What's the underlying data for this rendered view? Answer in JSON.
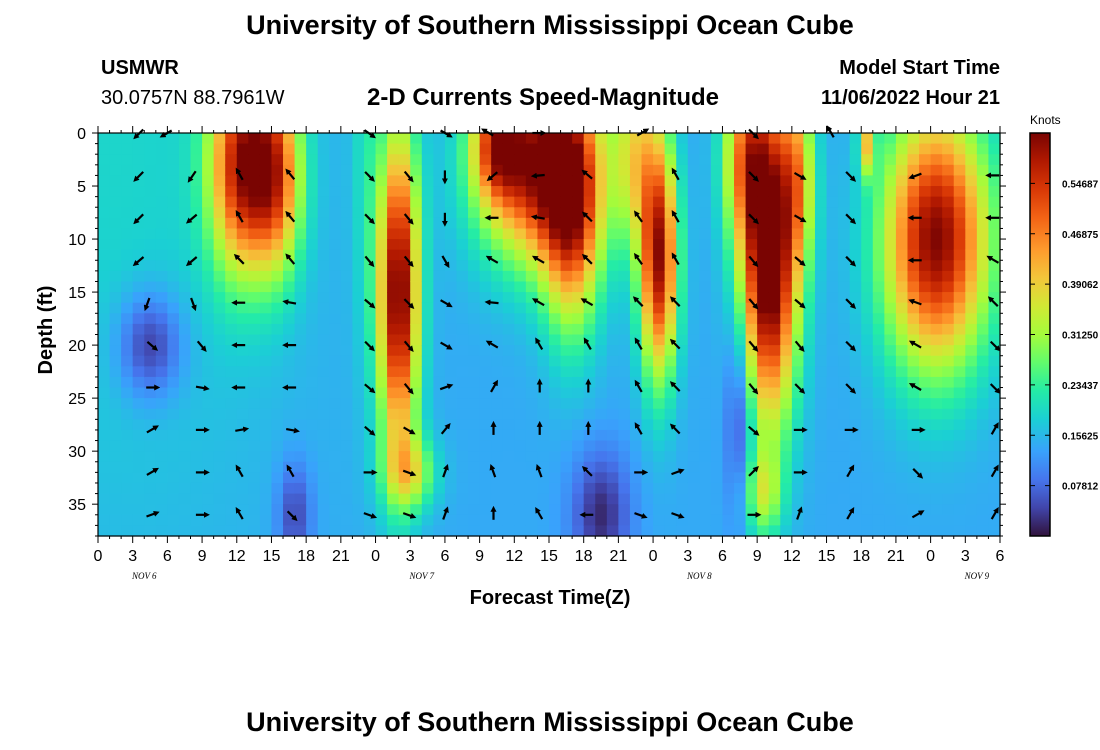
{
  "header": {
    "title": "University of Southern Mississippi Ocean Cube",
    "station": "USMWR",
    "coordinates": "30.0757N  88.7961W",
    "subtitle": "2-D Currents Speed-Magnitude",
    "model_start_label": "Model Start Time",
    "model_start_value": "11/06/2022 Hour 21"
  },
  "footer": {
    "title": "University of Southern Mississippi Ocean Cube"
  },
  "chart_data": {
    "type": "heatmap",
    "title": "2-D Currents Speed-Magnitude",
    "xlabel": "Forecast Time(Z)",
    "ylabel": "Depth (ft)",
    "x_tick_labels": [
      "0",
      "3",
      "6",
      "9",
      "12",
      "15",
      "18",
      "21",
      "0",
      "3",
      "6",
      "9",
      "12",
      "15",
      "18",
      "21",
      "0",
      "3",
      "6",
      "9",
      "12",
      "15",
      "18",
      "21",
      "0",
      "3",
      "6"
    ],
    "day_labels": [
      {
        "label": "NOV 6",
        "hour": 4
      },
      {
        "label": "NOV 7",
        "hour": 28
      },
      {
        "label": "NOV 8",
        "hour": 52
      },
      {
        "label": "NOV 9",
        "hour": 76
      }
    ],
    "x_range_hours": [
      0,
      78
    ],
    "y_ticks": [
      0,
      5,
      10,
      15,
      20,
      25,
      30,
      35
    ],
    "y_range": [
      0,
      38
    ],
    "colorbar": {
      "label": "Knots",
      "ticks": [
        "0.54687",
        "0.46875",
        "0.39062",
        "0.31250",
        "0.23437",
        "0.15625",
        "0.07812"
      ],
      "range": [
        0,
        0.625
      ]
    },
    "features": [
      {
        "hour": 1.5,
        "depth": 0,
        "wd": 40,
        "wt": 16,
        "amp": 0.05
      },
      {
        "hour": 12.5,
        "depth": 3,
        "wd": 10,
        "wt": 2.8,
        "amp": 0.42
      },
      {
        "hour": 15.5,
        "depth": 4,
        "wd": 9,
        "wt": 2.2,
        "amp": 0.3
      },
      {
        "hour": 23.2,
        "depth": 0,
        "wd": 22,
        "wt": 1.2,
        "amp": 0.06
      },
      {
        "hour": 26,
        "depth": 15,
        "wd": 15,
        "wt": 1.7,
        "amp": 0.5
      },
      {
        "hour": 27,
        "depth": 32,
        "wd": 3.5,
        "wt": 2.2,
        "amp": 0.18
      },
      {
        "hour": 38,
        "depth": 3,
        "wd": 9,
        "wt": 5,
        "amp": 0.45
      },
      {
        "hour": 34.5,
        "depth": 1,
        "wd": 5,
        "wt": 2,
        "amp": 0.25
      },
      {
        "hour": 41,
        "depth": 8,
        "wd": 11,
        "wt": 2.5,
        "amp": 0.32
      },
      {
        "hour": 48.5,
        "depth": 12,
        "wd": 11,
        "wt": 1.6,
        "amp": 0.45
      },
      {
        "hour": 46.5,
        "depth": 2,
        "wd": 9,
        "wt": 2,
        "amp": 0.2
      },
      {
        "hour": 58,
        "depth": 12,
        "wd": 15,
        "wt": 2.4,
        "amp": 0.55
      },
      {
        "hour": 56,
        "depth": 2,
        "wd": 8,
        "wt": 2,
        "amp": 0.25
      },
      {
        "hour": 60.5,
        "depth": 4,
        "wd": 9,
        "wt": 1.5,
        "amp": 0.22
      },
      {
        "hour": 57.5,
        "depth": 34,
        "wd": 4,
        "wt": 1.6,
        "amp": 0.16
      },
      {
        "hour": 72.5,
        "depth": 10,
        "wd": 12,
        "wt": 4.5,
        "amp": 0.48
      },
      {
        "hour": 66.5,
        "depth": 1,
        "wd": 3,
        "wt": 0.7,
        "amp": 0.22
      },
      {
        "hour": 4.5,
        "depth": 20,
        "wd": 5,
        "wt": 2.8,
        "amp": -0.13
      },
      {
        "hour": 17,
        "depth": 36,
        "wd": 5,
        "wt": 1.5,
        "amp": -0.1
      },
      {
        "hour": 43.5,
        "depth": 36,
        "wd": 6,
        "wt": 2.5,
        "amp": -0.12
      },
      {
        "hour": 55.5,
        "depth": 26,
        "wd": 10,
        "wt": 1.2,
        "amp": -0.12
      }
    ],
    "vectors": [
      {
        "hour": 3.6,
        "depth": 0,
        "angle": 225
      },
      {
        "hour": 6,
        "depth": 0,
        "angle": 240
      },
      {
        "hour": 23.4,
        "depth": 0,
        "angle": 125
      },
      {
        "hour": 30,
        "depth": 0,
        "angle": 120
      },
      {
        "hour": 33.8,
        "depth": 0,
        "angle": 300
      },
      {
        "hour": 38,
        "depth": 0,
        "angle": 90
      },
      {
        "hour": 47,
        "depth": 0,
        "angle": 60
      },
      {
        "hour": 56.6,
        "depth": 0,
        "angle": 135
      },
      {
        "hour": 63.4,
        "depth": 0,
        "angle": 330
      },
      {
        "hour": 3.6,
        "depth": 4,
        "angle": 225
      },
      {
        "hour": 8.2,
        "depth": 4,
        "angle": 215
      },
      {
        "hour": 12.3,
        "depth": 4,
        "angle": 330
      },
      {
        "hour": 16.7,
        "depth": 4,
        "angle": 320
      },
      {
        "hour": 23.4,
        "depth": 4,
        "angle": 135
      },
      {
        "hour": 26.8,
        "depth": 4,
        "angle": 140
      },
      {
        "hour": 30,
        "depth": 4,
        "angle": 180
      },
      {
        "hour": 34.2,
        "depth": 4,
        "angle": 230
      },
      {
        "hour": 38.2,
        "depth": 4,
        "angle": 265
      },
      {
        "hour": 42.4,
        "depth": 4,
        "angle": 310
      },
      {
        "hour": 50,
        "depth": 4,
        "angle": 330
      },
      {
        "hour": 56.6,
        "depth": 4,
        "angle": 135
      },
      {
        "hour": 60.6,
        "depth": 4,
        "angle": 120
      },
      {
        "hour": 65,
        "depth": 4,
        "angle": 135
      },
      {
        "hour": 70.8,
        "depth": 4,
        "angle": 250
      },
      {
        "hour": 77.5,
        "depth": 4,
        "angle": 270
      },
      {
        "hour": 3.6,
        "depth": 8,
        "angle": 225
      },
      {
        "hour": 8.2,
        "depth": 8,
        "angle": 230
      },
      {
        "hour": 12.3,
        "depth": 8,
        "angle": 330
      },
      {
        "hour": 16.7,
        "depth": 8,
        "angle": 320
      },
      {
        "hour": 23.4,
        "depth": 8,
        "angle": 135
      },
      {
        "hour": 26.8,
        "depth": 8,
        "angle": 140
      },
      {
        "hour": 30,
        "depth": 8,
        "angle": 180
      },
      {
        "hour": 34.2,
        "depth": 8,
        "angle": 270
      },
      {
        "hour": 38.2,
        "depth": 8,
        "angle": 280
      },
      {
        "hour": 42.4,
        "depth": 8,
        "angle": 315
      },
      {
        "hour": 46.8,
        "depth": 8,
        "angle": 325
      },
      {
        "hour": 50,
        "depth": 8,
        "angle": 330
      },
      {
        "hour": 56.6,
        "depth": 8,
        "angle": 135
      },
      {
        "hour": 60.6,
        "depth": 8,
        "angle": 120
      },
      {
        "hour": 65,
        "depth": 8,
        "angle": 135
      },
      {
        "hour": 70.8,
        "depth": 8,
        "angle": 270
      },
      {
        "hour": 77.5,
        "depth": 8,
        "angle": 270
      },
      {
        "hour": 3.6,
        "depth": 12,
        "angle": 230
      },
      {
        "hour": 8.2,
        "depth": 12,
        "angle": 230
      },
      {
        "hour": 12.3,
        "depth": 12,
        "angle": 315
      },
      {
        "hour": 16.7,
        "depth": 12,
        "angle": 320
      },
      {
        "hour": 23.4,
        "depth": 12,
        "angle": 140
      },
      {
        "hour": 26.8,
        "depth": 12,
        "angle": 140
      },
      {
        "hour": 30,
        "depth": 12,
        "angle": 150
      },
      {
        "hour": 34.2,
        "depth": 12,
        "angle": 300
      },
      {
        "hour": 38.2,
        "depth": 12,
        "angle": 300
      },
      {
        "hour": 42.4,
        "depth": 12,
        "angle": 315
      },
      {
        "hour": 46.8,
        "depth": 12,
        "angle": 325
      },
      {
        "hour": 50,
        "depth": 12,
        "angle": 330
      },
      {
        "hour": 56.6,
        "depth": 12,
        "angle": 140
      },
      {
        "hour": 60.6,
        "depth": 12,
        "angle": 130
      },
      {
        "hour": 65,
        "depth": 12,
        "angle": 135
      },
      {
        "hour": 70.8,
        "depth": 12,
        "angle": 270
      },
      {
        "hour": 77.5,
        "depth": 12,
        "angle": 300
      },
      {
        "hour": 4.3,
        "depth": 16,
        "angle": 200
      },
      {
        "hour": 8.2,
        "depth": 16,
        "angle": 160
      },
      {
        "hour": 12.3,
        "depth": 16,
        "angle": 270
      },
      {
        "hour": 16.7,
        "depth": 16,
        "angle": 280
      },
      {
        "hour": 23.4,
        "depth": 16,
        "angle": 130
      },
      {
        "hour": 26.8,
        "depth": 16,
        "angle": 135
      },
      {
        "hour": 30,
        "depth": 16,
        "angle": 120
      },
      {
        "hour": 34.2,
        "depth": 16,
        "angle": 275
      },
      {
        "hour": 38.2,
        "depth": 16,
        "angle": 300
      },
      {
        "hour": 42.4,
        "depth": 16,
        "angle": 300
      },
      {
        "hour": 46.8,
        "depth": 16,
        "angle": 315
      },
      {
        "hour": 50,
        "depth": 16,
        "angle": 315
      },
      {
        "hour": 56.6,
        "depth": 16,
        "angle": 140
      },
      {
        "hour": 60.6,
        "depth": 16,
        "angle": 130
      },
      {
        "hour": 65,
        "depth": 16,
        "angle": 135
      },
      {
        "hour": 70.8,
        "depth": 16,
        "angle": 290
      },
      {
        "hour": 77.5,
        "depth": 16,
        "angle": 315
      },
      {
        "hour": 4.6,
        "depth": 20,
        "angle": 130
      },
      {
        "hour": 8.9,
        "depth": 20,
        "angle": 140
      },
      {
        "hour": 12.3,
        "depth": 20,
        "angle": 270
      },
      {
        "hour": 16.7,
        "depth": 20,
        "angle": 270
      },
      {
        "hour": 23.4,
        "depth": 20,
        "angle": 135
      },
      {
        "hour": 26.8,
        "depth": 20,
        "angle": 140
      },
      {
        "hour": 30,
        "depth": 20,
        "angle": 120
      },
      {
        "hour": 34.2,
        "depth": 20,
        "angle": 300
      },
      {
        "hour": 38.2,
        "depth": 20,
        "angle": 330
      },
      {
        "hour": 42.4,
        "depth": 20,
        "angle": 330
      },
      {
        "hour": 46.8,
        "depth": 20,
        "angle": 330
      },
      {
        "hour": 50,
        "depth": 20,
        "angle": 315
      },
      {
        "hour": 56.6,
        "depth": 20,
        "angle": 140
      },
      {
        "hour": 60.6,
        "depth": 20,
        "angle": 140
      },
      {
        "hour": 65,
        "depth": 20,
        "angle": 135
      },
      {
        "hour": 70.8,
        "depth": 20,
        "angle": 300
      },
      {
        "hour": 77.5,
        "depth": 20,
        "angle": 135
      },
      {
        "hour": 4.6,
        "depth": 24,
        "angle": 90
      },
      {
        "hour": 8.9,
        "depth": 24,
        "angle": 100
      },
      {
        "hour": 12.3,
        "depth": 24,
        "angle": 270
      },
      {
        "hour": 16.7,
        "depth": 24,
        "angle": 270
      },
      {
        "hour": 23.4,
        "depth": 24,
        "angle": 130
      },
      {
        "hour": 26.8,
        "depth": 24,
        "angle": 140
      },
      {
        "hour": 30,
        "depth": 24,
        "angle": 70
      },
      {
        "hour": 34.2,
        "depth": 24,
        "angle": 30
      },
      {
        "hour": 38.2,
        "depth": 24,
        "angle": 0
      },
      {
        "hour": 42.4,
        "depth": 24,
        "angle": 0
      },
      {
        "hour": 46.8,
        "depth": 24,
        "angle": 330
      },
      {
        "hour": 50,
        "depth": 24,
        "angle": 315
      },
      {
        "hour": 56.6,
        "depth": 24,
        "angle": 140
      },
      {
        "hour": 60.6,
        "depth": 24,
        "angle": 135
      },
      {
        "hour": 65,
        "depth": 24,
        "angle": 135
      },
      {
        "hour": 70.8,
        "depth": 24,
        "angle": 300
      },
      {
        "hour": 77.5,
        "depth": 24,
        "angle": 135
      },
      {
        "hour": 4.6,
        "depth": 28,
        "angle": 60
      },
      {
        "hour": 8.9,
        "depth": 28,
        "angle": 90
      },
      {
        "hour": 12.3,
        "depth": 28,
        "angle": 80
      },
      {
        "hour": 16.7,
        "depth": 28,
        "angle": 100
      },
      {
        "hour": 23.4,
        "depth": 28,
        "angle": 130
      },
      {
        "hour": 26.8,
        "depth": 28,
        "angle": 120
      },
      {
        "hour": 30,
        "depth": 28,
        "angle": 40
      },
      {
        "hour": 34.2,
        "depth": 28,
        "angle": 0
      },
      {
        "hour": 38.2,
        "depth": 28,
        "angle": 0
      },
      {
        "hour": 42.4,
        "depth": 28,
        "angle": 0
      },
      {
        "hour": 46.8,
        "depth": 28,
        "angle": 330
      },
      {
        "hour": 50,
        "depth": 28,
        "angle": 315
      },
      {
        "hour": 56.6,
        "depth": 28,
        "angle": 130
      },
      {
        "hour": 60.6,
        "depth": 28,
        "angle": 90
      },
      {
        "hour": 65,
        "depth": 28,
        "angle": 90
      },
      {
        "hour": 70.8,
        "depth": 28,
        "angle": 90
      },
      {
        "hour": 77.5,
        "depth": 28,
        "angle": 30
      },
      {
        "hour": 4.6,
        "depth": 32,
        "angle": 60
      },
      {
        "hour": 8.9,
        "depth": 32,
        "angle": 90
      },
      {
        "hour": 12.3,
        "depth": 32,
        "angle": 330
      },
      {
        "hour": 16.7,
        "depth": 32,
        "angle": 330
      },
      {
        "hour": 23.4,
        "depth": 32,
        "angle": 90
      },
      {
        "hour": 26.8,
        "depth": 32,
        "angle": 110
      },
      {
        "hour": 30,
        "depth": 32,
        "angle": 20
      },
      {
        "hour": 34.2,
        "depth": 32,
        "angle": 340
      },
      {
        "hour": 38.2,
        "depth": 32,
        "angle": 340
      },
      {
        "hour": 42.4,
        "depth": 32,
        "angle": 315
      },
      {
        "hour": 46.8,
        "depth": 32,
        "angle": 90
      },
      {
        "hour": 50,
        "depth": 32,
        "angle": 70
      },
      {
        "hour": 56.6,
        "depth": 32,
        "angle": 45
      },
      {
        "hour": 60.6,
        "depth": 32,
        "angle": 90
      },
      {
        "hour": 65,
        "depth": 32,
        "angle": 30
      },
      {
        "hour": 70.8,
        "depth": 32,
        "angle": 135
      },
      {
        "hour": 77.5,
        "depth": 32,
        "angle": 30
      },
      {
        "hour": 4.6,
        "depth": 36,
        "angle": 70
      },
      {
        "hour": 8.9,
        "depth": 36,
        "angle": 90
      },
      {
        "hour": 12.3,
        "depth": 36,
        "angle": 330
      },
      {
        "hour": 16.7,
        "depth": 36,
        "angle": 135
      },
      {
        "hour": 23.4,
        "depth": 36,
        "angle": 110
      },
      {
        "hour": 26.8,
        "depth": 36,
        "angle": 110
      },
      {
        "hour": 30,
        "depth": 36,
        "angle": 20
      },
      {
        "hour": 34.2,
        "depth": 36,
        "angle": 0
      },
      {
        "hour": 38.2,
        "depth": 36,
        "angle": 330
      },
      {
        "hour": 42.4,
        "depth": 36,
        "angle": 270
      },
      {
        "hour": 46.8,
        "depth": 36,
        "angle": 110
      },
      {
        "hour": 50,
        "depth": 36,
        "angle": 110
      },
      {
        "hour": 56.6,
        "depth": 36,
        "angle": 90
      },
      {
        "hour": 60.6,
        "depth": 36,
        "angle": 20
      },
      {
        "hour": 65,
        "depth": 36,
        "angle": 30
      },
      {
        "hour": 70.8,
        "depth": 36,
        "angle": 60
      },
      {
        "hour": 77.5,
        "depth": 36,
        "angle": 30
      }
    ]
  }
}
